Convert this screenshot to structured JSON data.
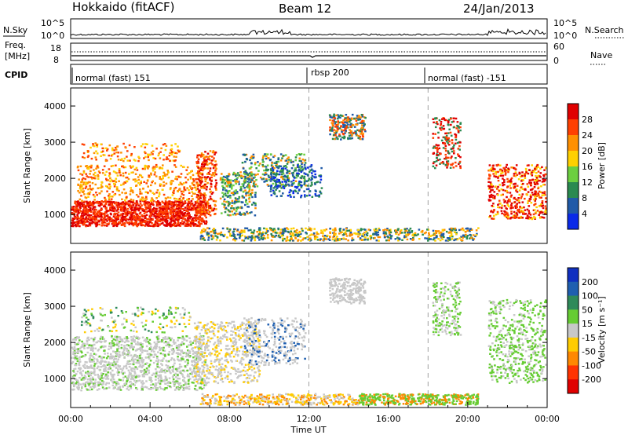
{
  "header": {
    "station": "Hokkaido (fitACF)",
    "beam": "Beam 12",
    "date": "24/Jan/2013"
  },
  "top_panel": {
    "left_label": "N.Sky",
    "left_ticks": [
      "10^5",
      "10^0"
    ],
    "right_ticks": [
      "10^5",
      "10^0"
    ],
    "right_label": "N.Search"
  },
  "freq_panel": {
    "left_label_1": "Freq.",
    "left_label_2": "[MHz]",
    "left_ticks": [
      "18",
      "8"
    ],
    "right_ticks": [
      "60",
      "0"
    ],
    "right_label": "Nave"
  },
  "cpid_panel": {
    "label": "CPID",
    "modes": [
      {
        "label": "normal (fast) 151",
        "start_hour": 0
      },
      {
        "label": "rbsp 200",
        "start_hour": 12
      },
      {
        "label": "normal (fast) -151",
        "start_hour": 18
      }
    ]
  },
  "chart_data": [
    {
      "type": "heatmap",
      "title": "",
      "xlabel": "",
      "ylabel": "Slant Range [km]",
      "quantity": "Power",
      "colorbar_label": "Power [dB]",
      "colorbar_ticks": [
        28,
        24,
        20,
        16,
        12,
        8,
        4
      ],
      "colorbar_colors": [
        "#e00000",
        "#ff4000",
        "#ff9000",
        "#ffd000",
        "#6ccf40",
        "#2a8a50",
        "#205aa8",
        "#0a2ae8"
      ],
      "ylim": [
        200,
        4500
      ],
      "yticks": [
        1000,
        2000,
        3000,
        4000
      ],
      "xlim_hours": [
        0,
        24
      ]
    },
    {
      "type": "heatmap",
      "title": "",
      "xlabel": "Time UT",
      "ylabel": "Slant Range [km]",
      "quantity": "Velocity",
      "colorbar_label": "Velocity [m s⁻¹]",
      "colorbar_ticks": [
        200,
        100,
        50,
        15,
        -15,
        -50,
        -100,
        -200
      ],
      "colorbar_colors": [
        "#1030c0",
        "#1f5fb0",
        "#2f8a5a",
        "#66cc33",
        "#c8c8c8",
        "#ffcc00",
        "#ff8800",
        "#ff3300",
        "#e00000"
      ],
      "ylim": [
        200,
        4500
      ],
      "yticks": [
        1000,
        2000,
        3000,
        4000
      ],
      "xlim_hours": [
        0,
        24
      ],
      "xticks": [
        "00:00",
        "04:00",
        "08:00",
        "12:00",
        "16:00",
        "20:00",
        "00:00"
      ]
    }
  ]
}
